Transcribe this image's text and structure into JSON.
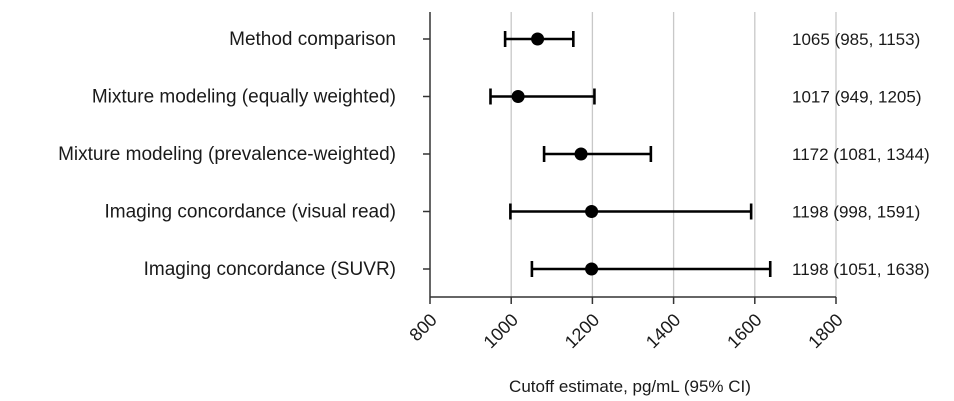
{
  "chart_data": {
    "type": "scatter",
    "title": "",
    "xlabel": "Cutoff estimate, pg/mL (95% CI)",
    "ylabel": "",
    "xlim": [
      800,
      1800
    ],
    "x_ticks": [
      "800",
      "1000",
      "1200",
      "1400",
      "1600",
      "1800"
    ],
    "grid": "vertical",
    "rows": [
      {
        "label": "Method comparison",
        "estimate": 1065,
        "lower": 985,
        "upper": 1153,
        "ci_text": "1065 (985, 1153)"
      },
      {
        "label": "Mixture modeling (equally weighted)",
        "estimate": 1017,
        "lower": 949,
        "upper": 1205,
        "ci_text": "1017 (949, 1205)"
      },
      {
        "label": "Mixture modeling (prevalence-weighted)",
        "estimate": 1172,
        "lower": 1081,
        "upper": 1344,
        "ci_text": "1172 (1081, 1344)"
      },
      {
        "label": "Imaging concordance (visual read)",
        "estimate": 1198,
        "lower": 998,
        "upper": 1591,
        "ci_text": "1198 (998, 1591)"
      },
      {
        "label": "Imaging concordance (SUVR)",
        "estimate": 1198,
        "lower": 1051,
        "upper": 1638,
        "ci_text": "1198 (1051, 1638)"
      }
    ],
    "colors": {
      "marker": "#000000",
      "axis": "#333333",
      "grid": "#c8c8c8"
    }
  }
}
